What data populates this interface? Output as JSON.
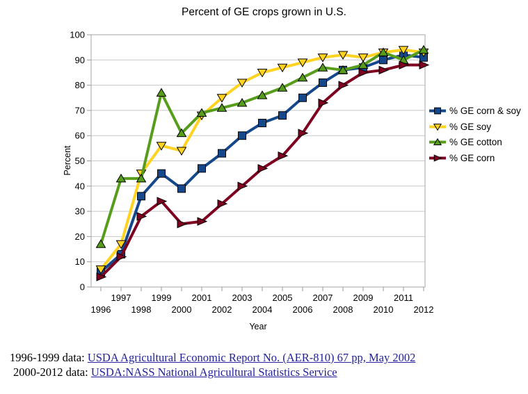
{
  "chart": {
    "title": "Percent of GE crops grown in U.S.",
    "xlabel": "Year",
    "ylabel": "Percent"
  },
  "chart_data": {
    "type": "line",
    "title": "Percent of GE crops grown in U.S.",
    "xlabel": "Year",
    "ylabel": "Percent",
    "ylim": [
      0,
      100
    ],
    "y_tick_step": 10,
    "grid": true,
    "legend_position": "right",
    "x": [
      1996,
      1997,
      1998,
      1999,
      2000,
      2001,
      2002,
      2003,
      2004,
      2005,
      2006,
      2007,
      2008,
      2009,
      2010,
      2011,
      2012
    ],
    "series": [
      {
        "name": "% GE corn & soy",
        "marker": "square",
        "color": "#15488A",
        "values": [
          6,
          13,
          36,
          45,
          39,
          47,
          53,
          60,
          65,
          68,
          75,
          81,
          86,
          87,
          90,
          92,
          91
        ]
      },
      {
        "name": "% GE soy",
        "marker": "triangle-down",
        "color": "#FFD320",
        "values": [
          7,
          17,
          45,
          56,
          54,
          68,
          75,
          81,
          85,
          87,
          89,
          91,
          92,
          91,
          93,
          94,
          93
        ]
      },
      {
        "name": "% GE cotton",
        "marker": "triangle-up",
        "color": "#579D1C",
        "values": [
          17,
          43,
          43,
          77,
          61,
          69,
          71,
          73,
          76,
          79,
          83,
          87,
          86,
          88,
          93,
          90,
          94
        ]
      },
      {
        "name": "% GE corn",
        "marker": "triangle-right",
        "color": "#7E0021",
        "values": [
          4,
          12,
          28,
          34,
          25,
          26,
          33,
          40,
          47,
          52,
          61,
          73,
          80,
          85,
          86,
          88,
          88
        ]
      }
    ]
  },
  "style_colors": {
    "grid_line": "#c8c8c8",
    "plot_border": "#b3b3b3",
    "tick": "#999999",
    "marker_outline": "#000000",
    "link": "#222299"
  },
  "footer": {
    "lines": [
      {
        "prefix": "1996-1999 data: ",
        "link": "USDA Agricultural Economic Report No. (AER-810) 67 pp, May 2002"
      },
      {
        "prefix": "2000-2012 data: ",
        "link": "USDA:NASS National Agricultural Statistics Service"
      }
    ]
  }
}
